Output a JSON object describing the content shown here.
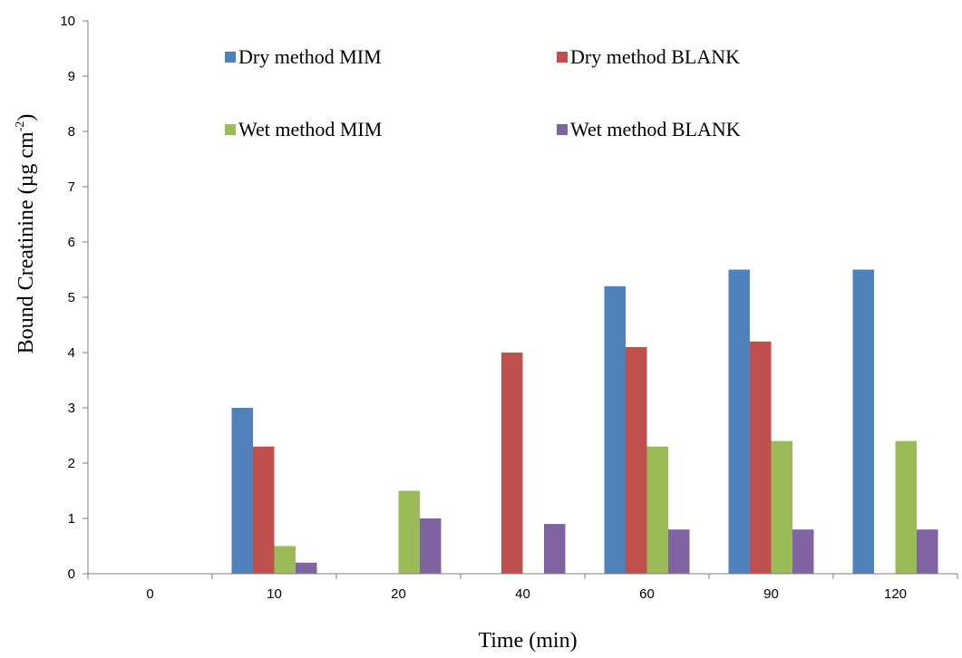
{
  "chart_data": {
    "type": "bar",
    "categories": [
      "0",
      "10",
      "20",
      "40",
      "60",
      "90",
      "120"
    ],
    "series": [
      {
        "name": "Dry method MIM",
        "color": "#4f81bd",
        "values": [
          0,
          3.0,
          0,
          0,
          5.2,
          5.5,
          5.5
        ]
      },
      {
        "name": "Dry method BLANK",
        "color": "#c0504d",
        "values": [
          0,
          2.3,
          0,
          4.0,
          4.1,
          4.2,
          0
        ]
      },
      {
        "name": "Wet method MIM",
        "color": "#9bbb59",
        "values": [
          0,
          0.5,
          1.5,
          0,
          2.3,
          2.4,
          2.4
        ]
      },
      {
        "name": "Wet method BLANK",
        "color": "#8064a2",
        "values": [
          0,
          0.2,
          1.0,
          0.9,
          0.8,
          0.8,
          0.8
        ]
      }
    ],
    "xlabel": "Time (min)",
    "ylabel_main": "Bound  Creatinine (µg cm",
    "ylabel_sup": "-2",
    "ylabel_close": ")",
    "ylim": [
      0,
      10
    ],
    "yticks": [
      "0",
      "1",
      "2",
      "3",
      "4",
      "5",
      "6",
      "7",
      "8",
      "9",
      "10"
    ],
    "legend": "top, 2x2 grid",
    "grid": false
  }
}
